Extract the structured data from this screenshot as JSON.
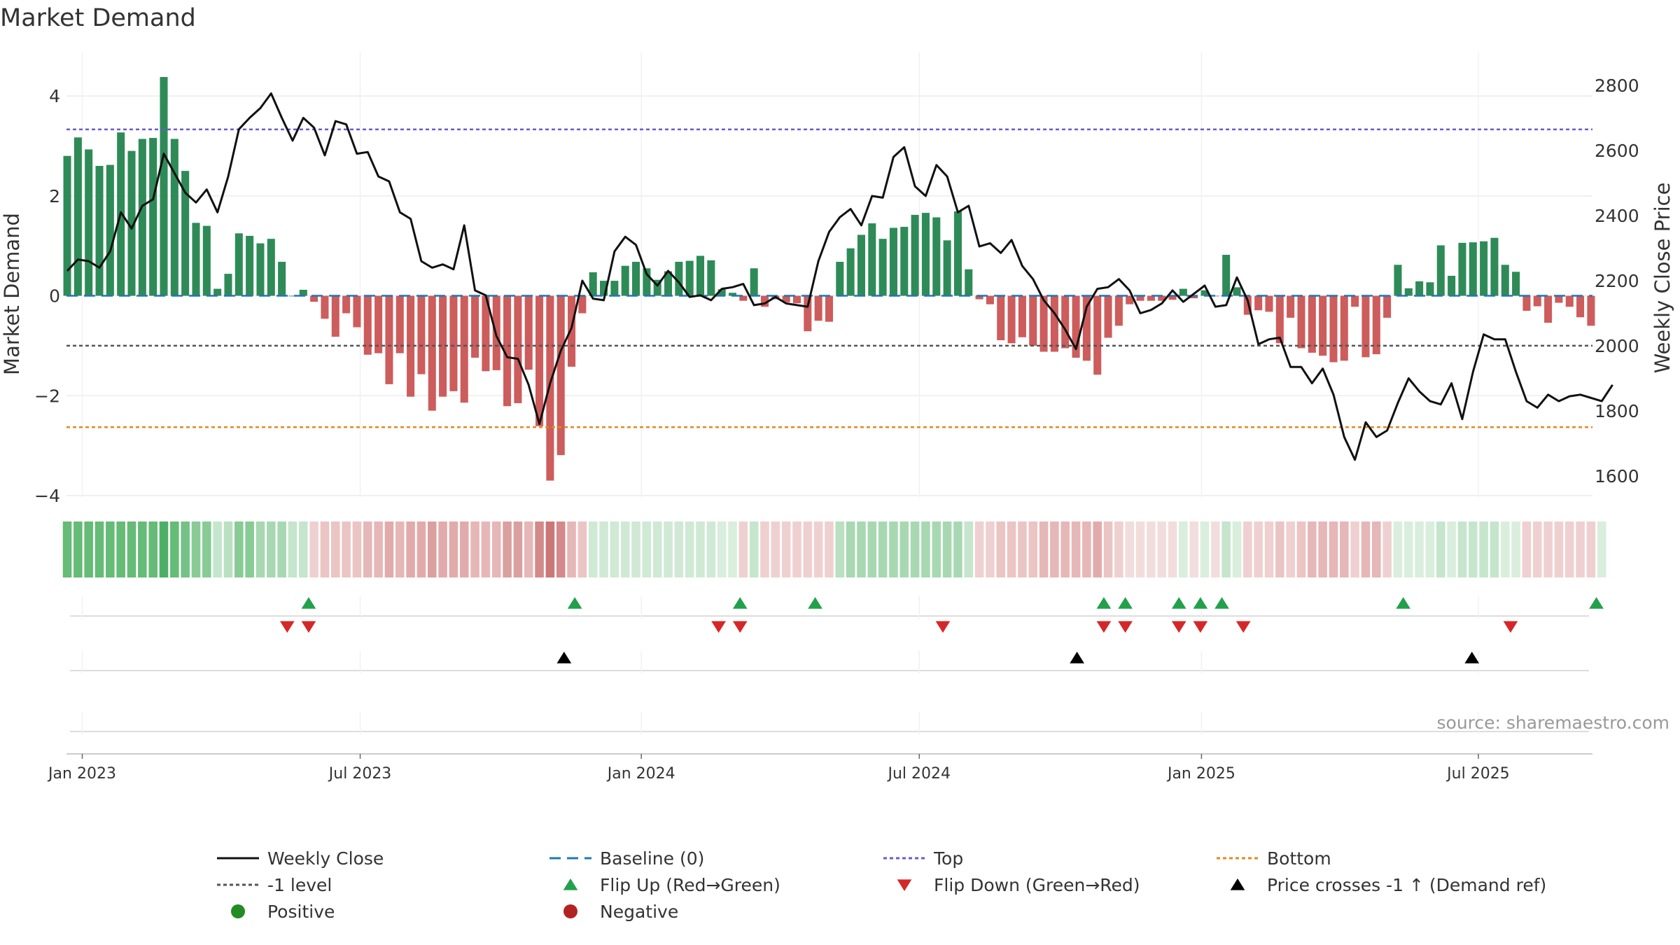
{
  "chart_data": {
    "type": "bar",
    "title": "Market Demand",
    "ylabel": "Market Demand",
    "y2label": "Weekly Close Price",
    "ylim": [
      -4.0,
      4.8
    ],
    "y2lim": [
      1540,
      2890
    ],
    "yticks": [
      4,
      2,
      0,
      -2,
      -4
    ],
    "ytick_labels": [
      "4",
      "2",
      "0",
      "−2",
      "−4"
    ],
    "y2ticks": [
      2800,
      2600,
      2400,
      2200,
      2000,
      1800,
      1600
    ],
    "x_ticks": [
      {
        "label": "Jan 2023",
        "week": 0.0
      },
      {
        "label": "Jul 2023",
        "week": 25.9
      },
      {
        "label": "Jan 2024",
        "week": 52.1
      },
      {
        "label": "Jul 2024",
        "week": 78.0
      },
      {
        "label": "Jan 2025",
        "week": 104.3
      },
      {
        "label": "Jul 2025",
        "week": 130.1
      }
    ],
    "first_bar_week": -1.4,
    "top_level": 3.33,
    "bottom_level": -2.63,
    "minus1_level": -1.0,
    "demand": [
      2.8,
      3.17,
      2.93,
      2.6,
      2.62,
      3.27,
      2.9,
      3.14,
      3.16,
      4.38,
      3.14,
      2.5,
      1.46,
      1.4,
      0.14,
      0.44,
      1.25,
      1.2,
      1.05,
      1.14,
      0.68,
      0.0,
      0.12,
      -0.12,
      -0.46,
      -0.82,
      -0.35,
      -0.63,
      -1.18,
      -1.15,
      -1.77,
      -1.15,
      -2.02,
      -1.57,
      -2.3,
      -2.02,
      -1.91,
      -2.14,
      -1.24,
      -1.51,
      -1.49,
      -2.21,
      -2.15,
      -1.48,
      -2.61,
      -3.7,
      -3.19,
      -1.42,
      -0.35,
      0.47,
      0.3,
      0.3,
      0.6,
      0.68,
      0.55,
      0.32,
      0.49,
      0.68,
      0.7,
      0.8,
      0.71,
      0.13,
      0.06,
      -0.1,
      0.55,
      -0.22,
      -0.07,
      -0.13,
      -0.15,
      -0.71,
      -0.5,
      -0.52,
      0.68,
      0.95,
      1.22,
      1.45,
      1.14,
      1.36,
      1.38,
      1.62,
      1.66,
      1.57,
      1.11,
      1.69,
      0.53,
      -0.07,
      -0.17,
      -0.89,
      -0.95,
      -0.83,
      -1.0,
      -1.12,
      -1.12,
      -1.05,
      -1.24,
      -1.3,
      -1.58,
      -0.84,
      -0.6,
      -0.17,
      -0.1,
      -0.1,
      -0.1,
      -0.08,
      0.14,
      -0.05,
      0.11,
      -0.01,
      0.82,
      0.17,
      -0.38,
      -0.29,
      -0.32,
      -0.95,
      -0.44,
      -1.05,
      -1.14,
      -1.2,
      -1.33,
      -1.3,
      -0.22,
      -1.23,
      -1.17,
      -0.44,
      0.62,
      0.15,
      0.29,
      0.27,
      1.01,
      0.4,
      1.06,
      1.07,
      1.09,
      1.16,
      0.62,
      0.48,
      -0.3,
      -0.21,
      -0.54,
      -0.14,
      -0.22,
      -0.43,
      -0.6
    ],
    "price": [
      2230,
      2265,
      2260,
      2240,
      2290,
      2410,
      2360,
      2430,
      2450,
      2590,
      2530,
      2470,
      2440,
      2480,
      2410,
      2520,
      2665,
      2700,
      2730,
      2775,
      2700,
      2630,
      2700,
      2670,
      2585,
      2690,
      2680,
      2590,
      2595,
      2520,
      2505,
      2410,
      2390,
      2260,
      2240,
      2250,
      2235,
      2370,
      2170,
      2155,
      2030,
      1965,
      1960,
      1880,
      1760,
      1885,
      1985,
      2055,
      2200,
      2145,
      2140,
      2290,
      2335,
      2310,
      2220,
      2185,
      2230,
      2195,
      2150,
      2155,
      2140,
      2175,
      2180,
      2190,
      2125,
      2130,
      2150,
      2130,
      2125,
      2120,
      2260,
      2350,
      2395,
      2420,
      2370,
      2460,
      2455,
      2580,
      2610,
      2490,
      2460,
      2555,
      2520,
      2410,
      2430,
      2305,
      2315,
      2285,
      2325,
      2245,
      2205,
      2140,
      2100,
      2050,
      1990,
      2120,
      2175,
      2180,
      2205,
      2170,
      2100,
      2110,
      2130,
      2170,
      2135,
      2160,
      2185,
      2120,
      2125,
      2210,
      2140,
      2005,
      2020,
      2025,
      1935,
      1935,
      1885,
      1930,
      1850,
      1720,
      1650,
      1765,
      1720,
      1740,
      1825,
      1900,
      1860,
      1830,
      1820,
      1885,
      1775,
      1920,
      2035,
      2020,
      2020,
      1920,
      1830,
      1810,
      1850,
      1830,
      1845,
      1850,
      1840,
      1830,
      1880
    ],
    "strip_colors": [
      "#66bb77",
      "#66bb77",
      "#66bb77",
      "#66bb77",
      "#66bb77",
      "#66bb77",
      "#66bb77",
      "#66bb77",
      "#66bb77",
      "#4caf65",
      "#66bb77",
      "#74c186",
      "#88cb95",
      "#88cb95",
      "#c5e5cc",
      "#b9e0c1",
      "#88cb95",
      "#88cb95",
      "#a8d8b2",
      "#a8d8b2",
      "#a8d8b2",
      "#c5e5cc",
      "#c5e5cc",
      "#efd0d0",
      "#ebc4c4",
      "#ebc4c4",
      "#ebc4c4",
      "#ebc4c4",
      "#e6b7b7",
      "#e6b7b7",
      "#e2abab",
      "#e6b7b7",
      "#e2abab",
      "#e2abab",
      "#daa0a0",
      "#e2abab",
      "#e2abab",
      "#e2abab",
      "#e6b7b7",
      "#e6b7b7",
      "#e6b7b7",
      "#daa0a0",
      "#daa0a0",
      "#e6b7b7",
      "#d48a8a",
      "#cc7777",
      "#d48a8a",
      "#e6b7b7",
      "#ebc4c4",
      "#cfe9d5",
      "#cfe9d5",
      "#cfe9d5",
      "#cfe9d5",
      "#cfe9d5",
      "#cfe9d5",
      "#cfe9d5",
      "#cfe9d5",
      "#cfe9d5",
      "#cfe9d5",
      "#cfe9d5",
      "#cfe9d5",
      "#d9eedd",
      "#d9eedd",
      "#efd0d0",
      "#c5e5cc",
      "#efd0d0",
      "#efd0d0",
      "#efd0d0",
      "#efd0d0",
      "#efd0d0",
      "#efd0d0",
      "#efd0d0",
      "#b9e0c1",
      "#a8d8b2",
      "#a8d8b2",
      "#a8d8b2",
      "#a8d8b2",
      "#a8d8b2",
      "#a8d8b2",
      "#a8d8b2",
      "#a8d8b2",
      "#a8d8b2",
      "#a8d8b2",
      "#a8d8b2",
      "#c5e5cc",
      "#efd0d0",
      "#efd0d0",
      "#ebc4c4",
      "#ebc4c4",
      "#ebc4c4",
      "#ebc4c4",
      "#e6b7b7",
      "#e6b7b7",
      "#e6b7b7",
      "#e6b7b7",
      "#e6b7b7",
      "#e2abab",
      "#ebc4c4",
      "#efd0d0",
      "#f2dddd",
      "#f2dddd",
      "#f2dddd",
      "#f2dddd",
      "#f2dddd",
      "#d9eedd",
      "#f2dddd",
      "#d9eedd",
      "#f2dddd",
      "#c5e5cc",
      "#d9eedd",
      "#efd0d0",
      "#efd0d0",
      "#efd0d0",
      "#ebc4c4",
      "#efd0d0",
      "#ebc4c4",
      "#e6b7b7",
      "#e6b7b7",
      "#e6b7b7",
      "#e6b7b7",
      "#efd0d0",
      "#e6b7b7",
      "#e6b7b7",
      "#efd0d0",
      "#d9eedd",
      "#d9eedd",
      "#d9eedd",
      "#d9eedd",
      "#c5e5cc",
      "#d9eedd",
      "#c5e5cc",
      "#c5e5cc",
      "#c5e5cc",
      "#c5e5cc",
      "#d9eedd",
      "#d9eedd",
      "#efd0d0",
      "#efd0d0",
      "#efd0d0",
      "#efd0d0",
      "#efd0d0",
      "#efd0d0",
      "#efd0d0",
      "#d9eedd"
    ],
    "flip_up_weeks": [
      21.1,
      45.9,
      61.3,
      68.3,
      95.2,
      97.2,
      102.2,
      104.2,
      106.2,
      123.1,
      141.1
    ],
    "flip_down_weeks": [
      19.1,
      21.1,
      59.3,
      61.3,
      80.2,
      95.2,
      97.2,
      102.2,
      104.2,
      108.2,
      133.1
    ],
    "cross_weeks": [
      44.9,
      92.7,
      129.5
    ],
    "source": "source: sharemaestro.com",
    "colors": {
      "positive": "#2e8b57",
      "negative": "#cd5c5c",
      "price_line": "#111111",
      "baseline": "#1f77b4",
      "top": "#6a5acd",
      "bottom": "#e08a1e",
      "minus1": "#555555",
      "flip_up": "#22a04b",
      "flip_down": "#d62728",
      "cross": "#000000",
      "legend_positive": "#228b22",
      "legend_negative": "#b22222"
    },
    "legend": [
      {
        "label": "Weekly Close",
        "kind": "line"
      },
      {
        "label": "Baseline (0)",
        "kind": "baseline"
      },
      {
        "label": "Top",
        "kind": "top"
      },
      {
        "label": "Bottom",
        "kind": "bottom"
      },
      {
        "label": "-1 level",
        "kind": "minus1"
      },
      {
        "label": "Flip Up (Red→Green)",
        "kind": "flip_up"
      },
      {
        "label": "Flip Down (Green→Red)",
        "kind": "flip_down"
      },
      {
        "label": "Price crosses -1 ↑ (Demand ref)",
        "kind": "cross"
      },
      {
        "label": "Positive",
        "kind": "positive"
      },
      {
        "label": "Negative",
        "kind": "negative"
      }
    ]
  }
}
